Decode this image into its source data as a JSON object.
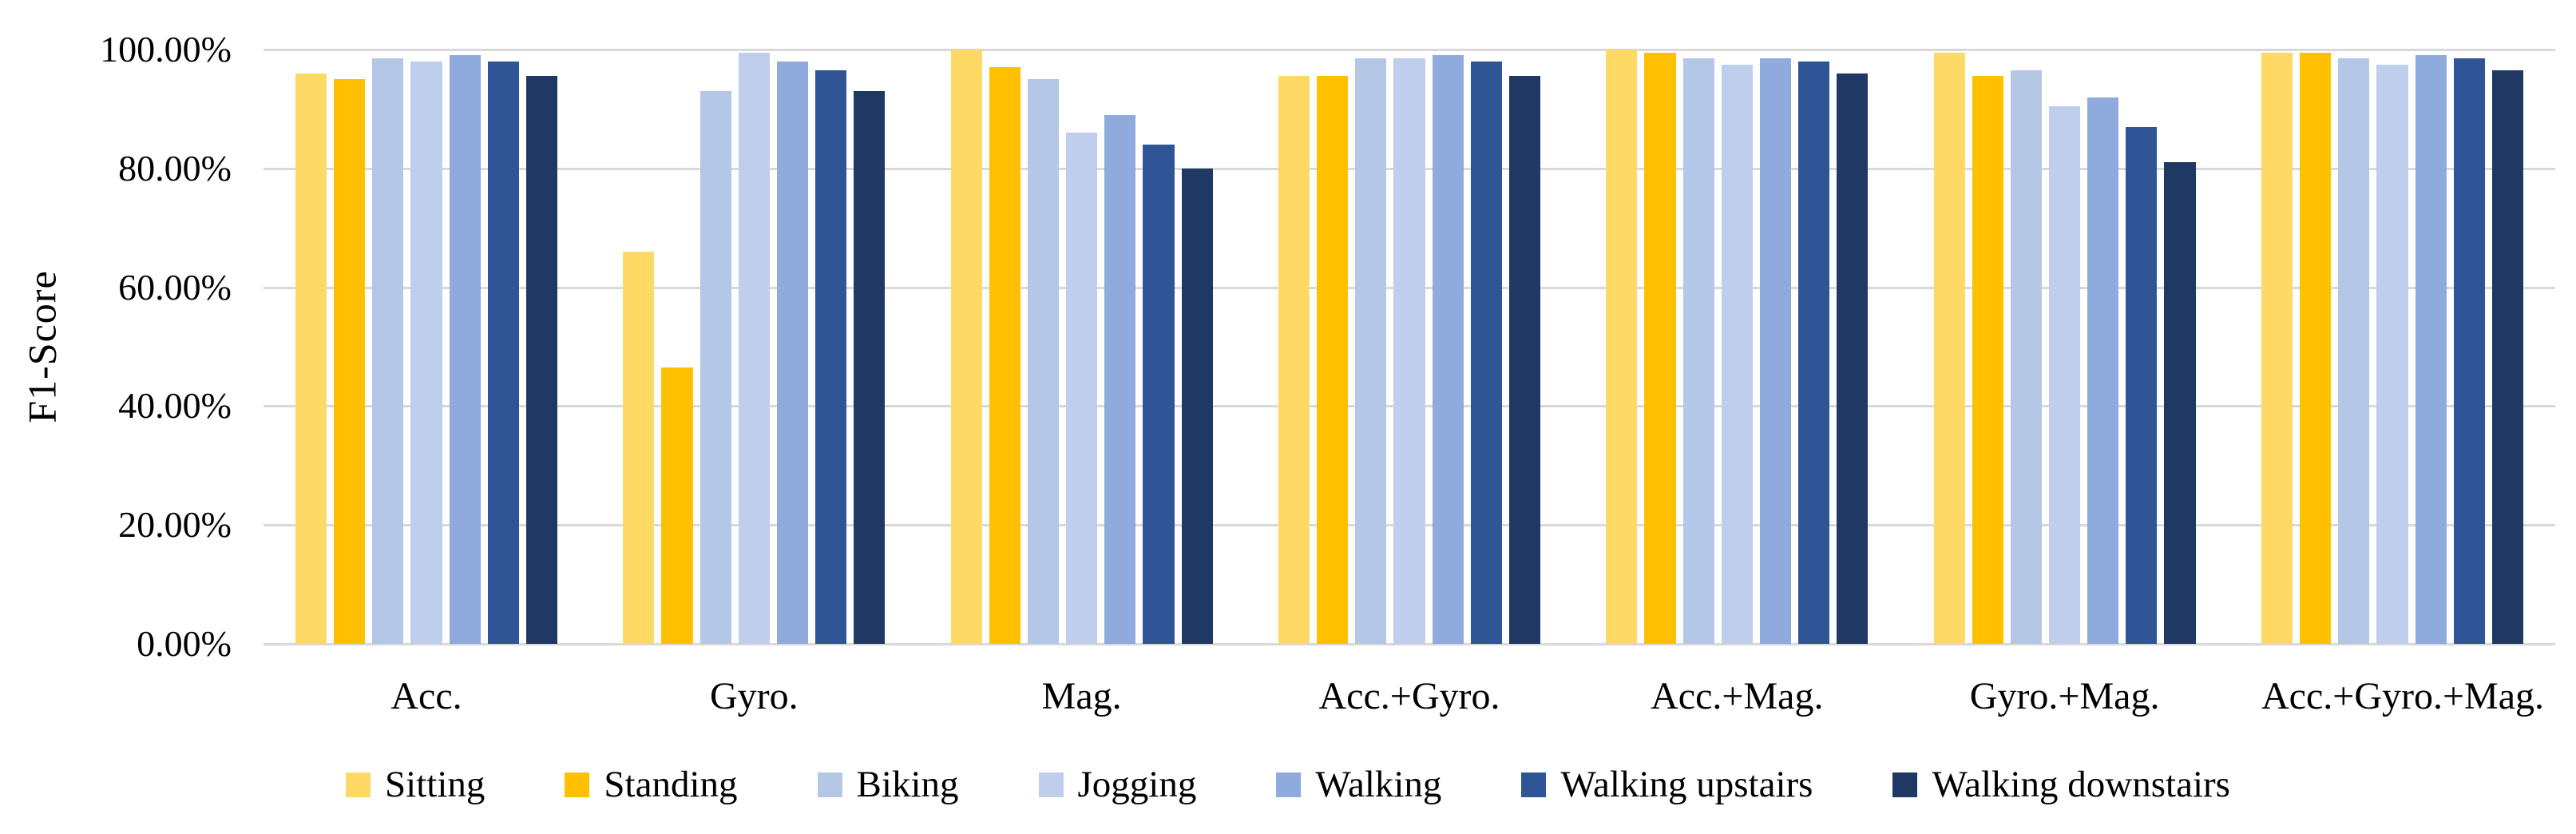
{
  "chart_data": {
    "type": "bar",
    "title": "",
    "xlabel": "",
    "ylabel": "F1-Score",
    "ylim": [
      0,
      100
    ],
    "grid": true,
    "gridline_color": "#d9d9d9",
    "background_color": "#ffffff",
    "text_color": "#000000",
    "legend_position": "bottom",
    "yticks": [
      {
        "value": 100,
        "label": "100.00%"
      },
      {
        "value": 80,
        "label": "80.00%"
      },
      {
        "value": 60,
        "label": "60.00%"
      },
      {
        "value": 40,
        "label": "40.00%"
      },
      {
        "value": 20,
        "label": "20.00%"
      },
      {
        "value": 0,
        "label": "0.00%"
      }
    ],
    "categories": [
      "Acc.",
      "Gyro.",
      "Mag.",
      "Acc.+Gyro.",
      "Acc.+Mag.",
      "Gyro.+Mag.",
      "Acc.+Gyro.+Mag."
    ],
    "series": [
      {
        "name": "Sitting",
        "color": "#FFD966",
        "values": [
          96.0,
          66.0,
          100.0,
          95.5,
          100.0,
          99.5,
          99.5
        ]
      },
      {
        "name": "Standing",
        "color": "#FFC000",
        "values": [
          95.0,
          46.5,
          97.0,
          95.5,
          99.5,
          95.5,
          99.5
        ]
      },
      {
        "name": "Biking",
        "color": "#B4C7E7",
        "values": [
          98.5,
          93.0,
          95.0,
          98.5,
          98.5,
          96.5,
          98.5
        ]
      },
      {
        "name": "Jogging",
        "color": "#BFCEEC",
        "values": [
          98.0,
          99.5,
          86.0,
          98.5,
          97.5,
          90.5,
          97.5
        ]
      },
      {
        "name": "Walking",
        "color": "#8FAADC",
        "values": [
          99.0,
          98.0,
          89.0,
          99.0,
          98.5,
          92.0,
          99.0
        ]
      },
      {
        "name": "Walking upstairs",
        "color": "#2F5597",
        "values": [
          98.0,
          96.5,
          84.0,
          98.0,
          98.0,
          87.0,
          98.5
        ]
      },
      {
        "name": "Walking downstairs",
        "color": "#203864",
        "values": [
          95.5,
          93.0,
          80.0,
          95.5,
          96.0,
          81.0,
          96.5
        ]
      }
    ]
  }
}
